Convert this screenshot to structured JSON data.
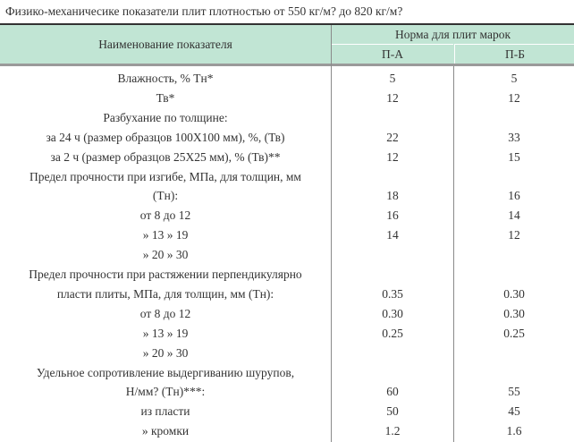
{
  "title": "Физико-механичесике показатели плит плотностью от 550 кг/м? до 820 кг/м?",
  "header": {
    "name_col": "Наименование показателя",
    "norm_col": "Норма для плит марок",
    "sub_cols": [
      "П-А",
      "П-Б"
    ]
  },
  "rows": [
    {
      "name": "Влажность, % Тн*",
      "pa": "5",
      "pb": "5"
    },
    {
      "name": "Тв*",
      "pa": "12",
      "pb": "12"
    },
    {
      "name": "Разбухание по толщине:",
      "pa": "",
      "pb": ""
    },
    {
      "name": "за 24 ч (размер образцов 100Х100 мм), %, (Тв)",
      "pa": "22",
      "pb": "33"
    },
    {
      "name": "за 2 ч (размер образцов 25Х25 мм), % (Тв)**",
      "pa": "12",
      "pb": "15"
    },
    {
      "name": "Предел прочности при изгибе, МПа, для толщин, мм",
      "pa": "",
      "pb": ""
    },
    {
      "name": "(Тн):",
      "pa": "18",
      "pb": "16"
    },
    {
      "name": "от 8 до 12",
      "pa": "16",
      "pb": "14"
    },
    {
      "name": "» 13 » 19",
      "pa": "14",
      "pb": "12"
    },
    {
      "name": "» 20 » 30",
      "pa": "",
      "pb": ""
    },
    {
      "name": "Предел прочности при растяжении перпендикулярно",
      "pa": "",
      "pb": ""
    },
    {
      "name": "пласти плиты, МПа, для толщин, мм (Тн):",
      "pa": "0.35",
      "pb": "0.30"
    },
    {
      "name": "от 8 до 12",
      "pa": "0.30",
      "pb": "0.30"
    },
    {
      "name": "» 13 » 19",
      "pa": "0.25",
      "pb": "0.25"
    },
    {
      "name": "» 20 » 30",
      "pa": "",
      "pb": ""
    },
    {
      "name": "Удельное сопротивление выдергиванию шурупов,",
      "pa": "",
      "pb": ""
    },
    {
      "name": "Н/мм? (Тн)***:",
      "pa": "60",
      "pb": "55"
    },
    {
      "name": "из пласти",
      "pa": "50",
      "pb": "45"
    },
    {
      "name": "» кромки",
      "pa": "1.2",
      "pb": "1.6"
    }
  ],
  "colors": {
    "header_bg": "#c1e5d4",
    "text": "#333333"
  }
}
